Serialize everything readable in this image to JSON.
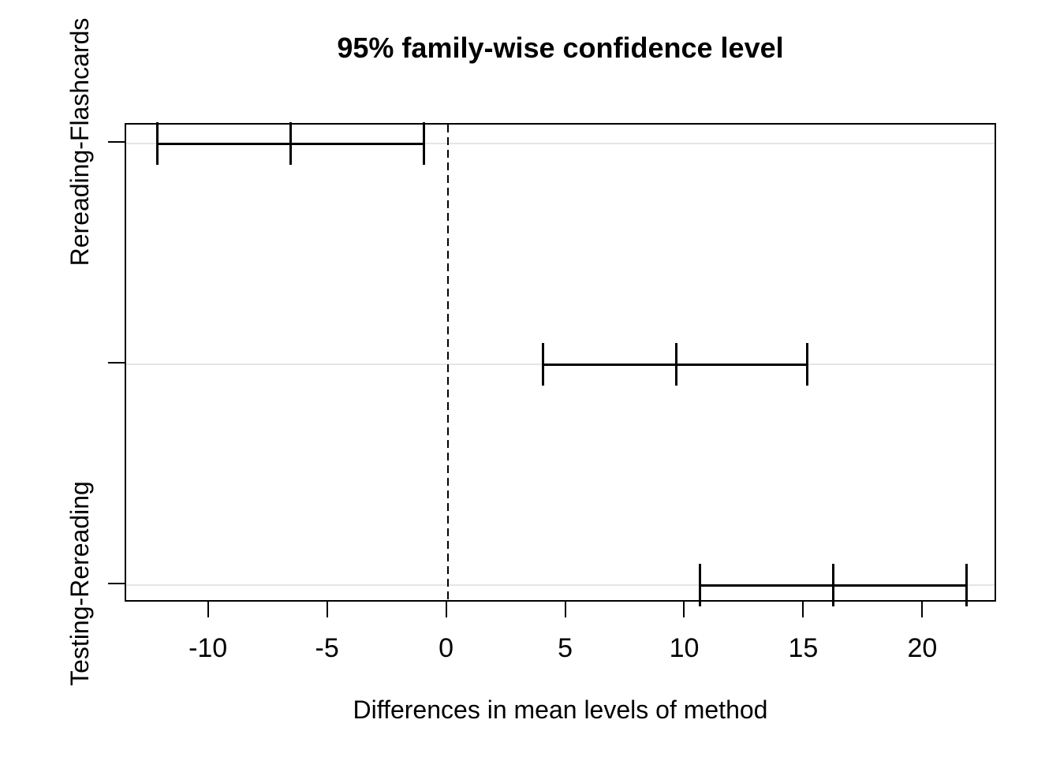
{
  "title": "95% family-wise confidence level",
  "x_axis_title": "Differences in mean levels of method",
  "chart_data": {
    "type": "tukey-hsd-confidence-intervals",
    "title": "95% family-wise confidence level",
    "xlabel": "Differences in mean levels of method",
    "ylabel": "",
    "x_ticks": [
      -10,
      -5,
      0,
      5,
      10,
      15,
      20
    ],
    "xlim": [
      -13.5,
      23.1
    ],
    "reference_line_x": 0,
    "grid": true,
    "comparisons": [
      {
        "label": "Rereading-Flashcards",
        "diff": -6.6,
        "lower": -12.2,
        "upper": -1.0
      },
      {
        "label": "",
        "diff": 9.6,
        "lower": 4.0,
        "upper": 15.1
      },
      {
        "label": "Testing-Rereading",
        "diff": 16.2,
        "lower": 10.6,
        "upper": 21.8
      }
    ],
    "colors": {
      "line": "#000000",
      "gridline": "#e5e5e5",
      "background": "#ffffff",
      "text": "#000000"
    }
  }
}
